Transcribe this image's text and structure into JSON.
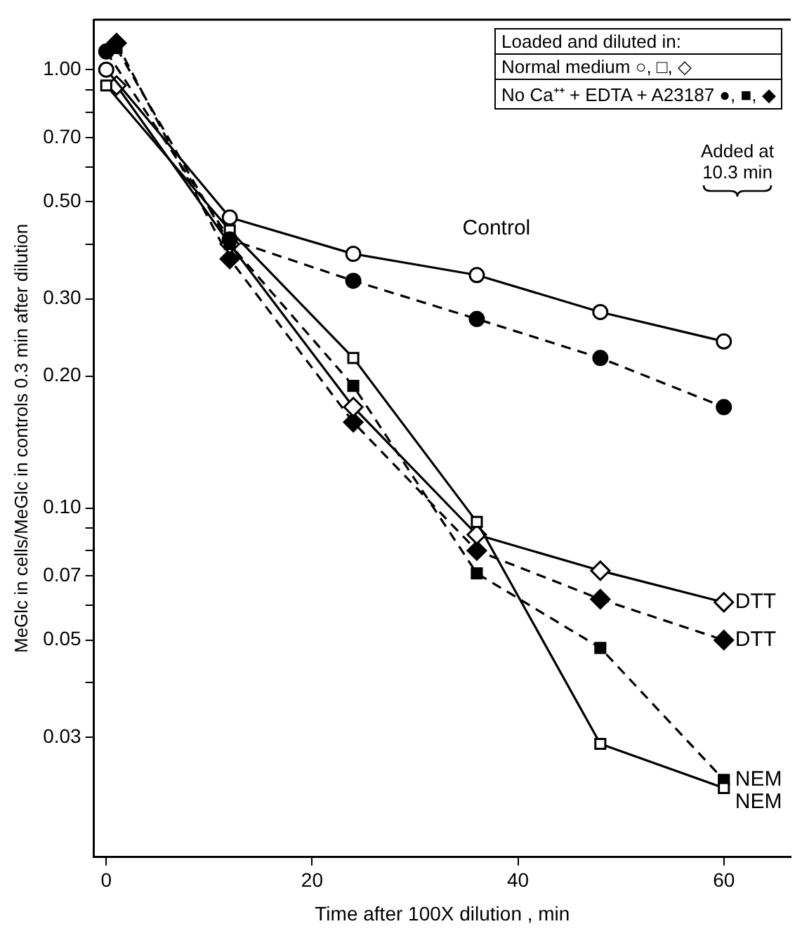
{
  "chart_data": {
    "type": "line",
    "xlabel": "Time after 100X dilution , min",
    "ylabel": "MeGlc in cells/MeGlc in controls 0.3 min after dilution",
    "legend_title": "Loaded and diluted in:",
    "xlim": [
      -1.2,
      66.5
    ],
    "xticks": [
      0,
      20,
      40,
      60
    ],
    "ylim": [
      0.016,
      1.3
    ],
    "yticks": [
      {
        "value": 1,
        "label": "1.00"
      },
      {
        "value": 0.9,
        "label": null
      },
      {
        "value": 0.8,
        "label": null
      },
      {
        "value": 0.7,
        "label": "0.70"
      },
      {
        "value": 0.6,
        "label": null
      },
      {
        "value": 0.5,
        "label": "0.50"
      },
      {
        "value": 0.4,
        "label": null
      },
      {
        "value": 0.3,
        "label": "0.30"
      },
      {
        "value": 0.2,
        "label": "0.20"
      },
      {
        "value": 0.1,
        "label": "0.10"
      },
      {
        "value": 0.09,
        "label": null
      },
      {
        "value": 0.08,
        "label": null
      },
      {
        "value": 0.07,
        "label": "0.07"
      },
      {
        "value": 0.06,
        "label": null
      },
      {
        "value": 0.05,
        "label": "0.05"
      },
      {
        "value": 0.04,
        "label": null
      },
      {
        "value": 0.03,
        "label": "0.03"
      }
    ],
    "log": "y",
    "grid": false,
    "annotations": [
      "Normal medium  ○, □, ◇",
      "No Ca⁺⁺ + EDTA + A23187 ●, ■, ◆",
      "Added at 10.3 min",
      "Control"
    ],
    "series": [
      {
        "color": "#000000",
        "marker": "circle",
        "line_style": "solid",
        "x": [
          0,
          12,
          24,
          36,
          48,
          60
        ],
        "values": [
          1.0,
          0.46,
          0.38,
          0.34,
          0.28,
          0.24
        ]
      },
      {
        "color": "#000000",
        "marker": "circle",
        "line_style": "dashed",
        "x": [
          0,
          12,
          24,
          36,
          48,
          60
        ],
        "values": [
          1.1,
          0.41,
          0.33,
          0.27,
          0.22,
          0.17
        ]
      },
      {
        "name": "NEM",
        "color": "#000000",
        "marker": "square",
        "line_style": "solid",
        "x": [
          0,
          12,
          24,
          36,
          48,
          60
        ],
        "values": [
          0.92,
          0.43,
          0.22,
          0.093,
          0.029,
          0.023
        ]
      },
      {
        "name": "NEM",
        "color": "#000000",
        "marker": "square",
        "line_style": "dashed",
        "x": [
          1,
          12,
          24,
          36,
          48,
          60
        ],
        "values": [
          1.12,
          0.4,
          0.19,
          0.071,
          0.048,
          0.024
        ]
      },
      {
        "name": "DTT",
        "color": "#000000",
        "marker": "diamond",
        "line_style": "solid",
        "x": [
          1,
          12,
          24,
          36,
          48,
          60
        ],
        "values": [
          0.92,
          0.4,
          0.17,
          0.087,
          0.072,
          0.061
        ]
      },
      {
        "name": "DTT",
        "color": "#000000",
        "marker": "diamond",
        "line_style": "dashed",
        "x": [
          1,
          12,
          24,
          36,
          48,
          60
        ],
        "values": [
          1.15,
          0.37,
          0.157,
          0.08,
          0.062,
          0.05
        ]
      }
    ]
  }
}
